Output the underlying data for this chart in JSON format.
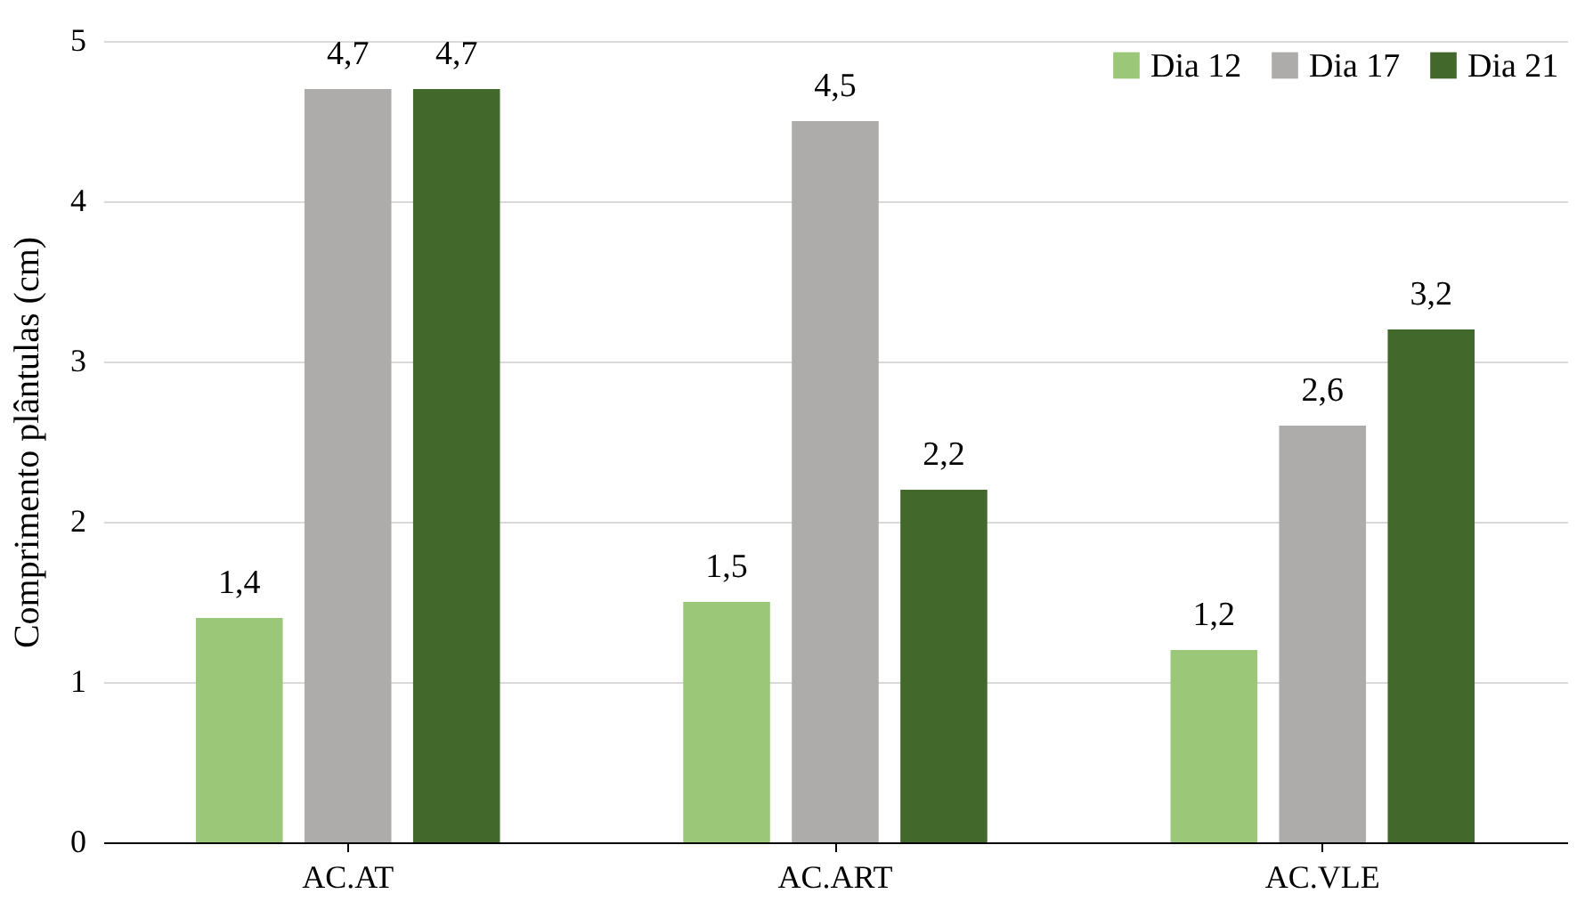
{
  "chart_data": {
    "type": "bar",
    "ylabel": "Comprimento plântulas (cm)",
    "categories": [
      "AC.AT",
      "AC.ART",
      "AC.VLE"
    ],
    "series": [
      {
        "name": "Dia 12",
        "color": "#9ac878",
        "values": [
          1.4,
          1.5,
          1.2
        ],
        "value_labels": [
          "1,4",
          "1,5",
          "1,2"
        ]
      },
      {
        "name": "Dia 17",
        "color": "#aeabab",
        "values": [
          4.7,
          4.5,
          2.6
        ],
        "value_labels": [
          "4,7",
          "4,5",
          "2,6"
        ]
      },
      {
        "name": "Dia 21",
        "color": "#43682b",
        "values": [
          4.7,
          2.2,
          3.2
        ],
        "value_labels": [
          "4,7",
          "2,2",
          "3,2"
        ]
      }
    ],
    "ylim": [
      0,
      5
    ],
    "yticks": [
      0,
      1,
      2,
      3,
      4,
      5
    ],
    "grid": "y",
    "legend": "top right"
  }
}
